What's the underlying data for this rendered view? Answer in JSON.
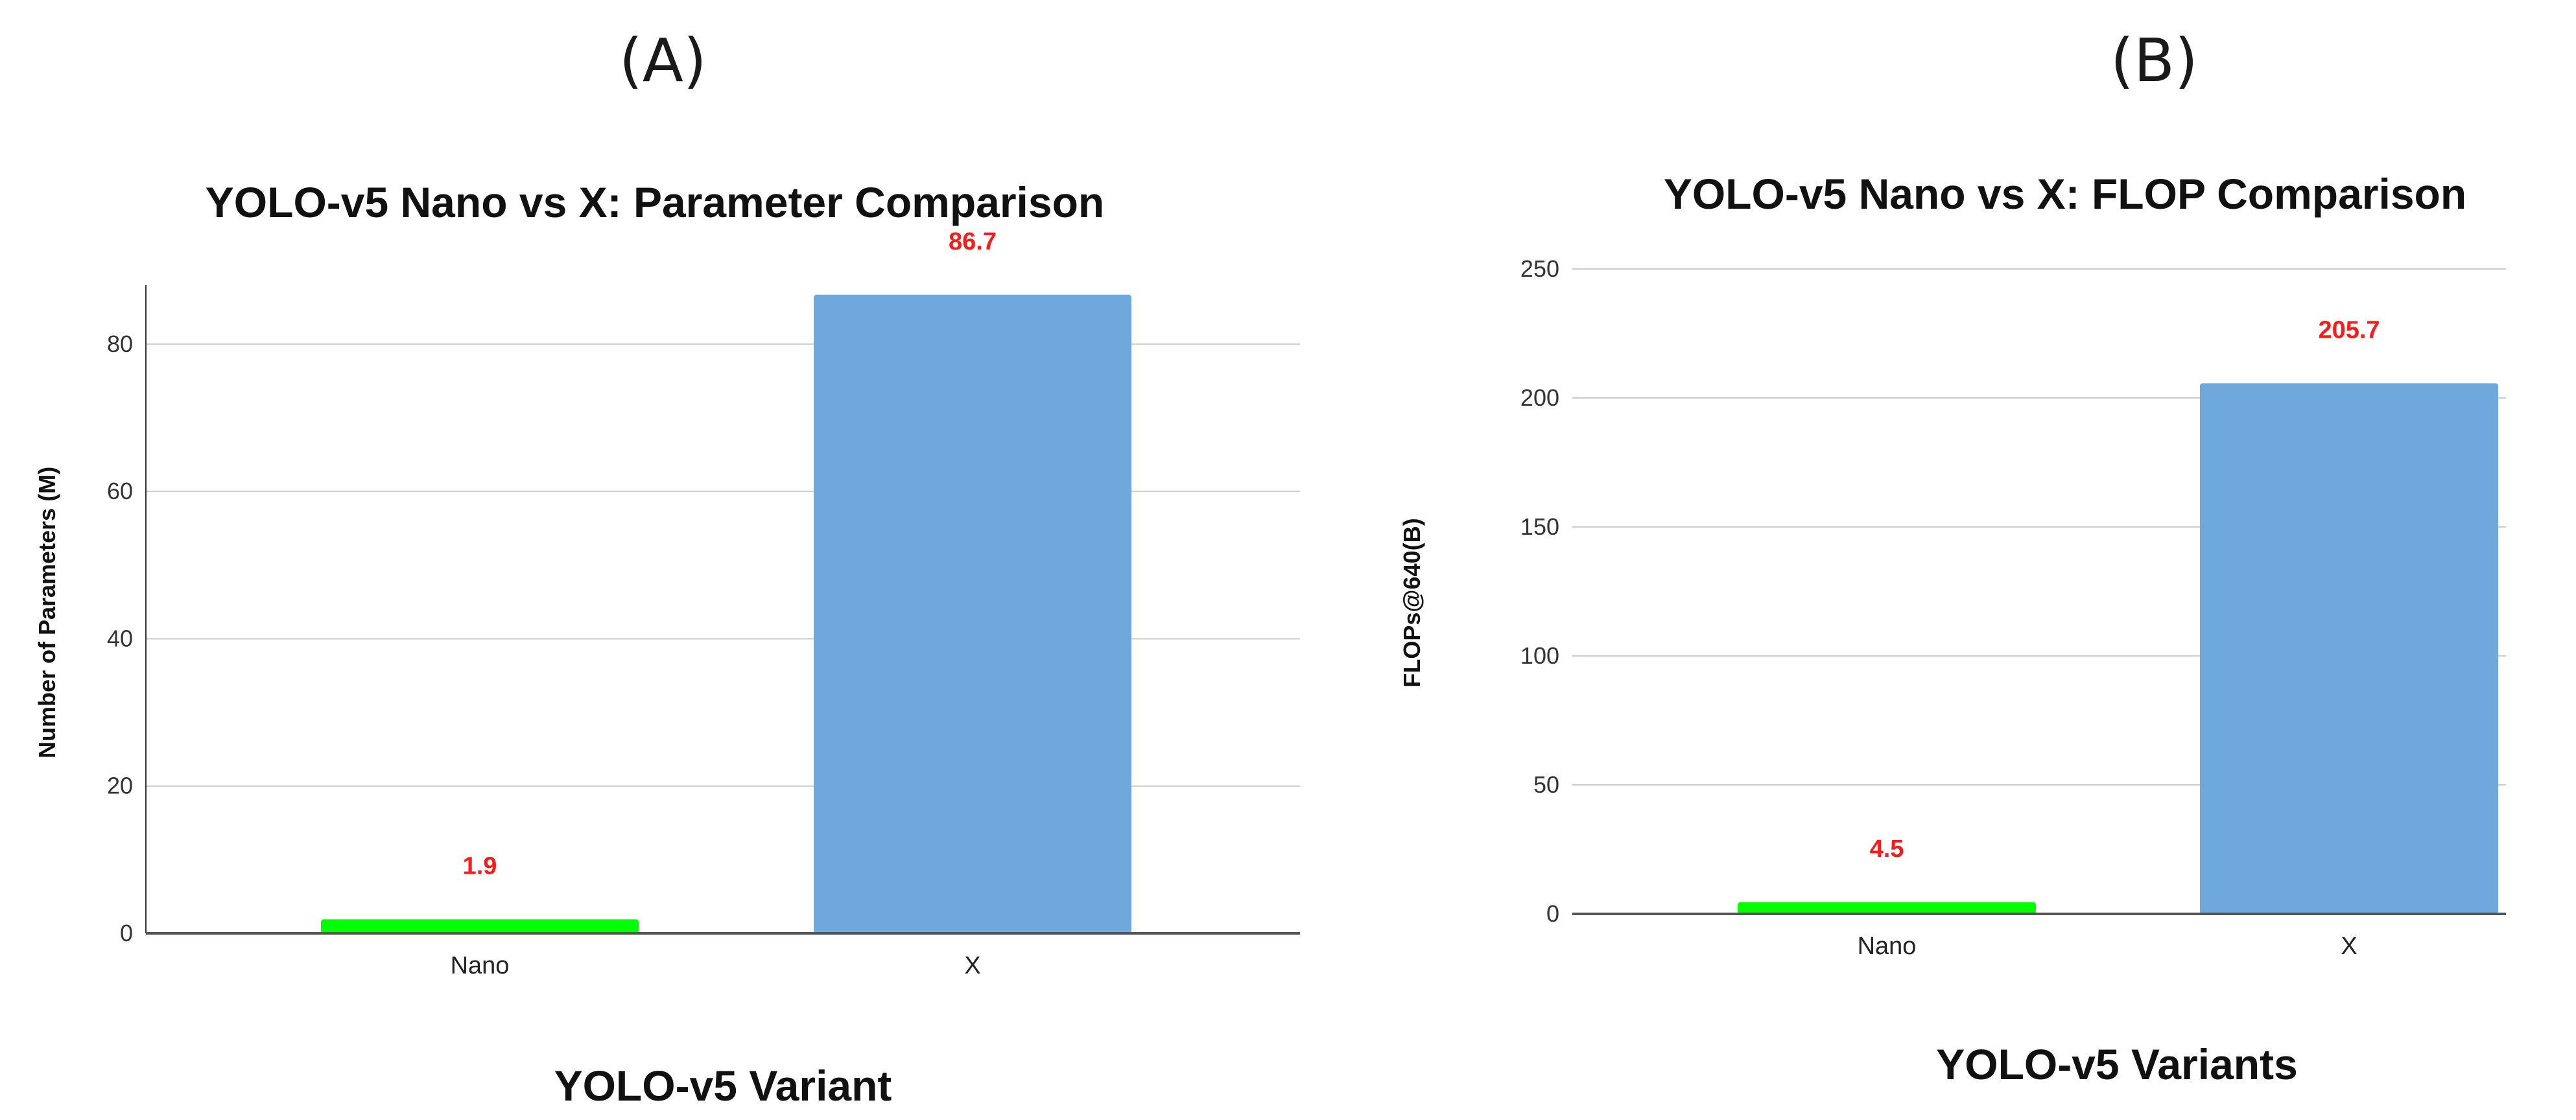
{
  "panels": [
    {
      "label": "(A)"
    },
    {
      "label": "(B)"
    }
  ],
  "chart_data": [
    {
      "type": "bar",
      "title": "YOLO-v5 Nano vs X: Parameter Comparison",
      "xlabel": "YOLO-v5 Variant",
      "ylabel": "Number of Parameters (M)",
      "categories": [
        "Nano",
        "X"
      ],
      "values": [
        1.9,
        86.7
      ],
      "data_labels": [
        "1.9",
        "86.7"
      ],
      "bar_colors": [
        "#00ff00",
        "#6fa8dc"
      ],
      "data_label_color": "#ff1a1a",
      "ylim": [
        0,
        88
      ],
      "yticks": [
        0,
        20,
        40,
        60,
        80
      ],
      "grid": true,
      "legend": "none"
    },
    {
      "type": "bar",
      "title": "YOLO-v5 Nano vs X: FLOP Comparison",
      "xlabel": "YOLO-v5 Variants",
      "ylabel": "FLOPs@640(B)",
      "categories": [
        "Nano",
        "X"
      ],
      "values": [
        4.5,
        205.7
      ],
      "data_labels": [
        "4.5",
        "205.7"
      ],
      "bar_colors": [
        "#00ff00",
        "#6fa8dc"
      ],
      "data_label_color": "#ff1a1a",
      "ylim": [
        0,
        250
      ],
      "yticks": [
        0,
        50,
        100,
        150,
        200,
        250
      ],
      "grid": true,
      "legend": "none"
    }
  ]
}
